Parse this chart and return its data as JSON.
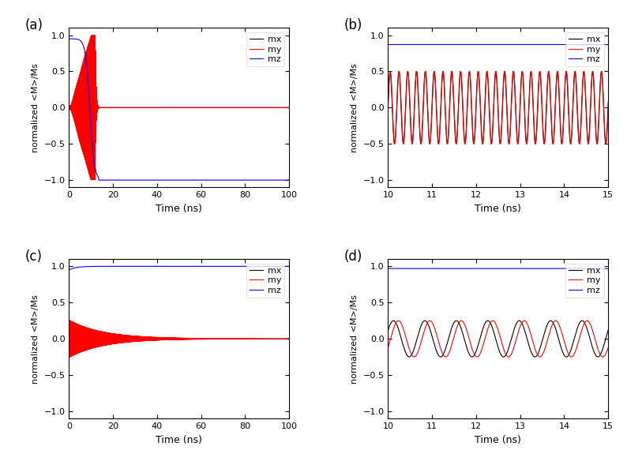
{
  "panel_a": {
    "xlim": [
      0,
      100
    ],
    "ylim": [
      -1.1,
      1.1
    ],
    "xticks": [
      0,
      20,
      40,
      60,
      80,
      100
    ],
    "yticks": [
      -1.0,
      -0.5,
      0.0,
      0.5,
      1.0
    ],
    "xlabel": "Time (ns)",
    "ylabel": "normalized <M>/Ms",
    "label": "(a)"
  },
  "panel_b": {
    "xlim": [
      10,
      15
    ],
    "ylim": [
      -1.1,
      1.1
    ],
    "xticks": [
      10,
      11,
      12,
      13,
      14,
      15
    ],
    "yticks": [
      -1.0,
      -0.5,
      0.0,
      0.5,
      1.0
    ],
    "xlabel": "Time (ns)",
    "ylabel": "normalized <M>/Ms",
    "label": "(b)"
  },
  "panel_c": {
    "xlim": [
      0,
      100
    ],
    "ylim": [
      -1.1,
      1.1
    ],
    "xticks": [
      0,
      20,
      40,
      60,
      80,
      100
    ],
    "yticks": [
      -1.0,
      -0.5,
      0.0,
      0.5,
      1.0
    ],
    "xlabel": "Time (ns)",
    "ylabel": "normalized <M>/Ms",
    "label": "(c)"
  },
  "panel_d": {
    "xlim": [
      10,
      15
    ],
    "ylim": [
      -1.1,
      1.1
    ],
    "xticks": [
      10,
      11,
      12,
      13,
      14,
      15
    ],
    "yticks": [
      -1.0,
      -0.5,
      0.0,
      0.5,
      1.0
    ],
    "xlabel": "Time (ns)",
    "ylabel": "normalized <M>/Ms",
    "label": "(d)"
  },
  "colors": {
    "mx": "#000000",
    "my": "#ff0000",
    "mz": "#0000ff"
  },
  "background_color": "#ffffff",
  "line_width": 0.8
}
